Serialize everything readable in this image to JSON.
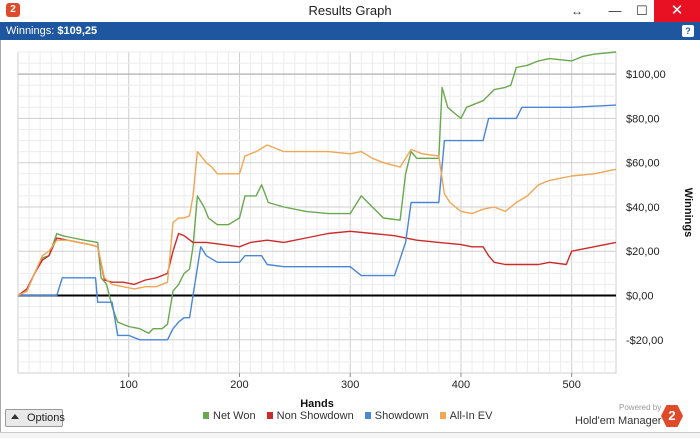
{
  "window": {
    "title": "Results Graph",
    "app_icon_text": "2",
    "resize_glyph": "↔",
    "min_glyph": "—",
    "max_glyph": "☐",
    "close_glyph": "✕"
  },
  "infobar": {
    "label": "Winnings:",
    "value": "$109,25",
    "help": "?"
  },
  "options_button": {
    "label": "Options"
  },
  "branding": {
    "powered_by": "Powered by",
    "name": "Hold'em Manager",
    "logo_text": "2"
  },
  "colors": {
    "net_won": "#6aa84f",
    "non_showdown": "#cc2b2b",
    "showdown": "#4a86d8",
    "all_in_ev": "#f0a654",
    "infobar": "#1e56a0"
  },
  "chart_data": {
    "type": "line",
    "xlabel": "Hands",
    "ylabel": "Winnings",
    "xlim": [
      0,
      540
    ],
    "ylim": [
      -35,
      110
    ],
    "x_ticks": [
      100,
      200,
      300,
      400,
      500
    ],
    "x_tick_labels": [
      "100",
      "200",
      "300",
      "400",
      "500"
    ],
    "y_ticks": [
      100,
      80,
      60,
      40,
      20,
      0,
      -20
    ],
    "y_tick_labels": [
      "$100,00",
      "$80,00",
      "$60,00",
      "$40,00",
      "$20,00",
      "$0,00",
      "-$20,00"
    ],
    "grid": true,
    "legend": "bottom",
    "series": [
      {
        "name": "Net Won",
        "color": "#6aa84f",
        "points": [
          [
            0,
            0
          ],
          [
            8,
            2
          ],
          [
            15,
            10
          ],
          [
            22,
            17
          ],
          [
            28,
            18
          ],
          [
            35,
            28
          ],
          [
            40,
            27
          ],
          [
            50,
            26
          ],
          [
            60,
            25
          ],
          [
            72,
            24
          ],
          [
            75,
            8
          ],
          [
            80,
            5
          ],
          [
            85,
            -5
          ],
          [
            90,
            -12
          ],
          [
            100,
            -14
          ],
          [
            110,
            -15
          ],
          [
            118,
            -17
          ],
          [
            122,
            -15
          ],
          [
            130,
            -15
          ],
          [
            135,
            -13
          ],
          [
            140,
            2
          ],
          [
            145,
            5
          ],
          [
            150,
            10
          ],
          [
            155,
            12
          ],
          [
            158,
            22
          ],
          [
            162,
            45
          ],
          [
            168,
            40
          ],
          [
            172,
            35
          ],
          [
            180,
            32
          ],
          [
            190,
            32
          ],
          [
            200,
            35
          ],
          [
            205,
            45
          ],
          [
            215,
            45
          ],
          [
            220,
            50
          ],
          [
            226,
            42
          ],
          [
            240,
            40
          ],
          [
            260,
            38
          ],
          [
            280,
            37
          ],
          [
            300,
            37
          ],
          [
            310,
            45
          ],
          [
            320,
            40
          ],
          [
            330,
            35
          ],
          [
            345,
            34
          ],
          [
            350,
            55
          ],
          [
            355,
            65
          ],
          [
            360,
            62
          ],
          [
            370,
            62
          ],
          [
            380,
            62
          ],
          [
            383,
            94
          ],
          [
            388,
            85
          ],
          [
            395,
            82
          ],
          [
            400,
            80
          ],
          [
            405,
            85
          ],
          [
            420,
            88
          ],
          [
            430,
            93
          ],
          [
            440,
            94
          ],
          [
            445,
            95
          ],
          [
            450,
            103
          ],
          [
            460,
            104
          ],
          [
            470,
            106
          ],
          [
            480,
            107
          ],
          [
            500,
            106
          ],
          [
            510,
            108
          ],
          [
            520,
            109
          ],
          [
            540,
            110
          ]
        ]
      },
      {
        "name": "Non Showdown",
        "color": "#cc2b2b",
        "points": [
          [
            0,
            0
          ],
          [
            8,
            3
          ],
          [
            15,
            10
          ],
          [
            22,
            16
          ],
          [
            28,
            18
          ],
          [
            35,
            26
          ],
          [
            45,
            25
          ],
          [
            55,
            24
          ],
          [
            65,
            23
          ],
          [
            72,
            22
          ],
          [
            78,
            7
          ],
          [
            85,
            6
          ],
          [
            95,
            6
          ],
          [
            105,
            5
          ],
          [
            115,
            7
          ],
          [
            125,
            8
          ],
          [
            135,
            10
          ],
          [
            140,
            20
          ],
          [
            145,
            28
          ],
          [
            150,
            27
          ],
          [
            158,
            24
          ],
          [
            170,
            24
          ],
          [
            185,
            23
          ],
          [
            200,
            22
          ],
          [
            210,
            24
          ],
          [
            225,
            25
          ],
          [
            240,
            24
          ],
          [
            260,
            26
          ],
          [
            280,
            28
          ],
          [
            300,
            29
          ],
          [
            320,
            28
          ],
          [
            340,
            27
          ],
          [
            360,
            25
          ],
          [
            380,
            24
          ],
          [
            400,
            23
          ],
          [
            410,
            22
          ],
          [
            420,
            22
          ],
          [
            425,
            18
          ],
          [
            430,
            15
          ],
          [
            440,
            14
          ],
          [
            450,
            14
          ],
          [
            460,
            14
          ],
          [
            470,
            14
          ],
          [
            480,
            15
          ],
          [
            495,
            14
          ],
          [
            500,
            20
          ],
          [
            520,
            22
          ],
          [
            540,
            24
          ]
        ]
      },
      {
        "name": "Showdown",
        "color": "#4a86d8",
        "points": [
          [
            0,
            0
          ],
          [
            35,
            0
          ],
          [
            40,
            8
          ],
          [
            70,
            8
          ],
          [
            72,
            -3
          ],
          [
            85,
            -3
          ],
          [
            90,
            -18
          ],
          [
            100,
            -18
          ],
          [
            110,
            -20
          ],
          [
            120,
            -20
          ],
          [
            135,
            -20
          ],
          [
            140,
            -15
          ],
          [
            145,
            -12
          ],
          [
            150,
            -10
          ],
          [
            155,
            -10
          ],
          [
            158,
            0
          ],
          [
            165,
            22
          ],
          [
            170,
            18
          ],
          [
            180,
            15
          ],
          [
            200,
            15
          ],
          [
            205,
            18
          ],
          [
            220,
            18
          ],
          [
            225,
            14
          ],
          [
            240,
            13
          ],
          [
            300,
            13
          ],
          [
            310,
            9
          ],
          [
            340,
            9
          ],
          [
            350,
            24
          ],
          [
            355,
            42
          ],
          [
            380,
            42
          ],
          [
            385,
            70
          ],
          [
            400,
            70
          ],
          [
            420,
            70
          ],
          [
            425,
            80
          ],
          [
            440,
            80
          ],
          [
            450,
            80
          ],
          [
            455,
            85
          ],
          [
            500,
            85
          ],
          [
            540,
            86
          ]
        ]
      },
      {
        "name": "All-In EV",
        "color": "#f0a654",
        "points": [
          [
            0,
            0
          ],
          [
            8,
            2
          ],
          [
            15,
            10
          ],
          [
            22,
            18
          ],
          [
            28,
            20
          ],
          [
            35,
            25
          ],
          [
            45,
            25
          ],
          [
            55,
            24
          ],
          [
            65,
            23
          ],
          [
            72,
            22
          ],
          [
            78,
            8
          ],
          [
            85,
            5
          ],
          [
            95,
            4
          ],
          [
            105,
            3
          ],
          [
            115,
            4
          ],
          [
            125,
            4
          ],
          [
            135,
            6
          ],
          [
            140,
            33
          ],
          [
            145,
            35
          ],
          [
            150,
            35
          ],
          [
            155,
            36
          ],
          [
            158,
            45
          ],
          [
            162,
            65
          ],
          [
            170,
            60
          ],
          [
            175,
            58
          ],
          [
            180,
            55
          ],
          [
            190,
            55
          ],
          [
            200,
            55
          ],
          [
            205,
            63
          ],
          [
            215,
            65
          ],
          [
            225,
            68
          ],
          [
            240,
            65
          ],
          [
            260,
            65
          ],
          [
            280,
            65
          ],
          [
            300,
            64
          ],
          [
            310,
            65
          ],
          [
            320,
            62
          ],
          [
            330,
            60
          ],
          [
            345,
            58
          ],
          [
            350,
            62
          ],
          [
            355,
            66
          ],
          [
            365,
            64
          ],
          [
            380,
            63
          ],
          [
            385,
            46
          ],
          [
            390,
            42
          ],
          [
            400,
            38
          ],
          [
            410,
            37
          ],
          [
            420,
            39
          ],
          [
            430,
            40
          ],
          [
            440,
            38
          ],
          [
            450,
            42
          ],
          [
            460,
            45
          ],
          [
            470,
            50
          ],
          [
            480,
            52
          ],
          [
            500,
            54
          ],
          [
            520,
            55
          ],
          [
            540,
            57
          ]
        ]
      }
    ]
  }
}
